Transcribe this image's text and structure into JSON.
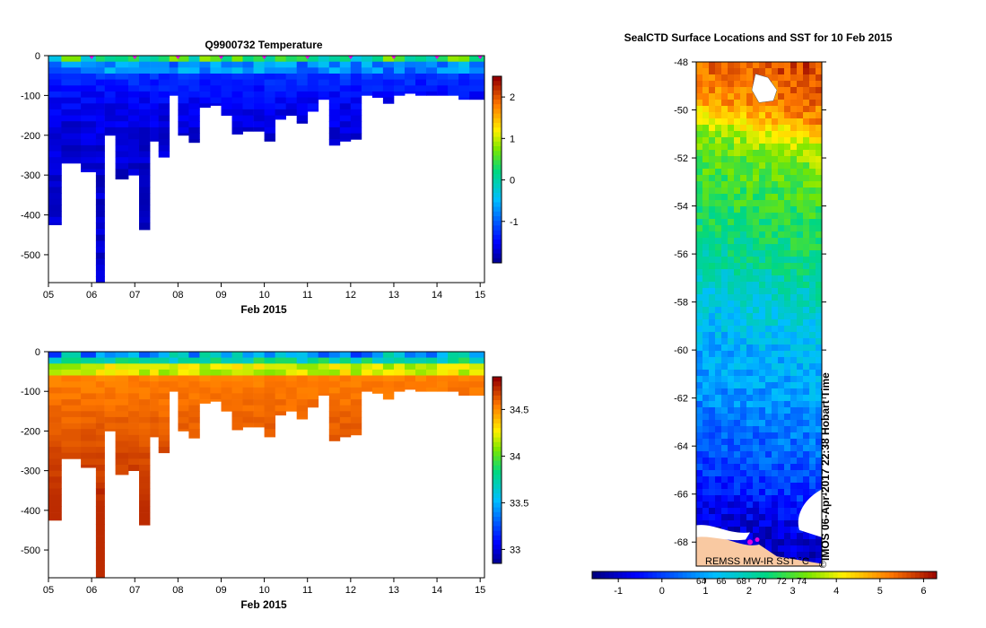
{
  "figure": {
    "creation_stamp": "IMOS 06-Apr-2017 22:38 Hobart Time",
    "copyright": "©"
  },
  "chart_data": [
    {
      "type": "heatmap",
      "id": "temperature",
      "title": "Q9900732  Temperature",
      "xlabel": "Feb 2015",
      "x_ticks": [
        "05",
        "06",
        "07",
        "08",
        "09",
        "10",
        "11",
        "12",
        "13",
        "14",
        "15"
      ],
      "xlim": [
        5,
        15.1
      ],
      "ylim": [
        -570,
        0
      ],
      "y_ticks": [
        0,
        -100,
        -200,
        -300,
        -400,
        -500
      ],
      "y_tick_labels": [
        "0",
        "-100",
        "-200",
        "-300",
        "-400",
        "-500"
      ],
      "profile_markers_x": [
        6,
        7,
        8,
        9,
        10,
        11,
        12,
        13,
        14,
        15
      ],
      "profile_marker_color": "#e000e0",
      "profiles": [
        {
          "x": 5.0,
          "depth": 425
        },
        {
          "x": 5.3,
          "depth": 270
        },
        {
          "x": 5.75,
          "depth": 292
        },
        {
          "x": 6.1,
          "depth": 570
        },
        {
          "x": 6.3,
          "depth": 200
        },
        {
          "x": 6.55,
          "depth": 310
        },
        {
          "x": 6.85,
          "depth": 300
        },
        {
          "x": 7.1,
          "depth": 437
        },
        {
          "x": 7.35,
          "depth": 215
        },
        {
          "x": 7.55,
          "depth": 255
        },
        {
          "x": 7.8,
          "depth": 100
        },
        {
          "x": 8.0,
          "depth": 200
        },
        {
          "x": 8.25,
          "depth": 218
        },
        {
          "x": 8.5,
          "depth": 130
        },
        {
          "x": 8.75,
          "depth": 125
        },
        {
          "x": 9.0,
          "depth": 150
        },
        {
          "x": 9.25,
          "depth": 197
        },
        {
          "x": 9.5,
          "depth": 190
        },
        {
          "x": 9.75,
          "depth": 190
        },
        {
          "x": 10.0,
          "depth": 215
        },
        {
          "x": 10.25,
          "depth": 160
        },
        {
          "x": 10.5,
          "depth": 150
        },
        {
          "x": 10.75,
          "depth": 170
        },
        {
          "x": 11.0,
          "depth": 140
        },
        {
          "x": 11.25,
          "depth": 110
        },
        {
          "x": 11.5,
          "depth": 225
        },
        {
          "x": 11.75,
          "depth": 215
        },
        {
          "x": 12.0,
          "depth": 210
        },
        {
          "x": 12.25,
          "depth": 100
        },
        {
          "x": 12.5,
          "depth": 105
        },
        {
          "x": 12.75,
          "depth": 120
        },
        {
          "x": 13.0,
          "depth": 100
        },
        {
          "x": 13.25,
          "depth": 95
        },
        {
          "x": 13.5,
          "depth": 100
        },
        {
          "x": 13.75,
          "depth": 100
        },
        {
          "x": 14.0,
          "depth": 100
        },
        {
          "x": 14.25,
          "depth": 100
        },
        {
          "x": 14.5,
          "depth": 110
        },
        {
          "x": 14.75,
          "depth": 110
        }
      ],
      "surface_value": 0.3,
      "deep_value": -1.7,
      "colorbar": {
        "range": [
          -2.0,
          2.5
        ],
        "ticks": [
          2,
          1,
          0,
          -1
        ],
        "tick_labels": [
          "2",
          "1",
          "0",
          "-1"
        ]
      }
    },
    {
      "type": "heatmap",
      "id": "salinity",
      "title": "",
      "xlabel": "Feb 2015",
      "x_ticks": [
        "05",
        "06",
        "07",
        "08",
        "09",
        "10",
        "11",
        "12",
        "13",
        "14",
        "15"
      ],
      "xlim": [
        5,
        15.1
      ],
      "ylim": [
        -570,
        0
      ],
      "y_ticks": [
        0,
        -100,
        -200,
        -300,
        -400,
        -500
      ],
      "y_tick_labels": [
        "0",
        "-100",
        "-200",
        "-300",
        "-400",
        "-500"
      ],
      "surface_value": 33.6,
      "deep_value": 34.55,
      "bottom_value": 34.75,
      "colorbar": {
        "range": [
          32.85,
          34.85
        ],
        "ticks": [
          34.5,
          34,
          33.5,
          33
        ],
        "tick_labels": [
          "34.5",
          "34",
          "33.5",
          "33"
        ]
      }
    },
    {
      "type": "heatmap",
      "id": "sst_map",
      "title": "SealCTD Surface Locations and SST for 10 Feb 2015",
      "ylim": [
        -69,
        -48
      ],
      "y_ticks": [
        -48,
        -50,
        -52,
        -54,
        -56,
        -58,
        -60,
        -62,
        -64,
        -66,
        -68
      ],
      "y_tick_labels": [
        "-48",
        "-50",
        "-52",
        "-54",
        "-56",
        "-58",
        "-60",
        "-62",
        "-64",
        "-66",
        "-68"
      ],
      "x_tick_labels": [
        "64",
        "66",
        "68",
        "70",
        "72",
        "74"
      ],
      "x_tick_positions": [
        64,
        66,
        68,
        70,
        72,
        74
      ],
      "xlim": [
        63.5,
        76.0
      ],
      "source_label": "REMSS MW-IR SST °C",
      "sst_by_latitude": [
        {
          "lat": -48,
          "sst": 5.6
        },
        {
          "lat": -50,
          "sst": 5.0
        },
        {
          "lat": -51,
          "sst": 3.8
        },
        {
          "lat": -52,
          "sst": 3.2
        },
        {
          "lat": -54,
          "sst": 2.7
        },
        {
          "lat": -56,
          "sst": 2.3
        },
        {
          "lat": -58,
          "sst": 1.6
        },
        {
          "lat": -60,
          "sst": 1.1
        },
        {
          "lat": -62,
          "sst": 0.8
        },
        {
          "lat": -64,
          "sst": 0.3
        },
        {
          "lat": -66,
          "sst": -0.3
        },
        {
          "lat": -67,
          "sst": -0.8
        },
        {
          "lat": -69,
          "sst": -1.3
        }
      ],
      "land_color": "#f9c9a2",
      "colorbar": {
        "range": [
          -1.6,
          6.3
        ],
        "ticks": [
          -1,
          0,
          1,
          2,
          3,
          4,
          5,
          6
        ],
        "tick_labels": [
          "-1",
          "0",
          "1",
          "2",
          "3",
          "4",
          "5",
          "6"
        ]
      }
    }
  ]
}
